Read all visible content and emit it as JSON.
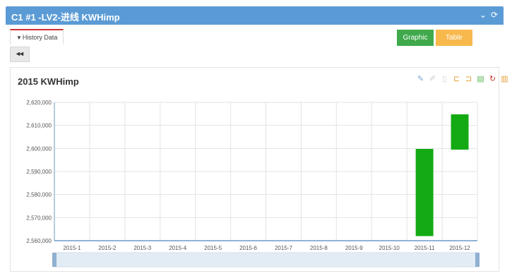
{
  "window": {
    "title": "C1 #1 -LV2-进线 KWHimp",
    "icons": [
      "chevron-down-icon",
      "refresh-icon"
    ]
  },
  "tab": {
    "label": "History Data",
    "icon": "filter-icon"
  },
  "back_button": {
    "label": "◂◂",
    "icon": "rewind-icon"
  },
  "buttons": {
    "graphic": "Graphic",
    "table": "Table"
  },
  "colors": {
    "header": "#5b9bd5",
    "graphic_btn": "#3fa94b",
    "table_btn": "#f7b84c",
    "bar": "#14aa14",
    "tab_accent": "#cc3333"
  },
  "toolbox": [
    "pencil-icon",
    "eraser-icon",
    "clipboard-icon",
    "zoom-icon",
    "zoom-reset-icon",
    "data-view-icon",
    "restore-icon",
    "save-icon"
  ],
  "chart_data": {
    "type": "bar",
    "subtype": "candlestick",
    "title": "2015   KWHimp",
    "categories": [
      "2015-1",
      "2015-2",
      "2015-3",
      "2015-4",
      "2015-5",
      "2015-6",
      "2015-7",
      "2015-8",
      "2015-9",
      "2015-10",
      "2015-11",
      "2015-12"
    ],
    "series": [
      {
        "values": [
          null,
          null,
          null,
          null,
          null,
          null,
          null,
          null,
          null,
          null,
          [
            2562000,
            2599800
          ],
          [
            2599500,
            2614800
          ]
        ]
      }
    ],
    "ylim": [
      2560000,
      2620000
    ],
    "yticks": [
      2560000,
      2570000,
      2580000,
      2590000,
      2600000,
      2610000,
      2620000
    ],
    "ytick_labels": [
      "2,560,000",
      "2,570,000",
      "2,580,000",
      "2,590,000",
      "2,600,000",
      "2,610,000",
      "2,620,000"
    ],
    "grid": true,
    "datazoom": {
      "start": 0,
      "end": 1
    }
  }
}
